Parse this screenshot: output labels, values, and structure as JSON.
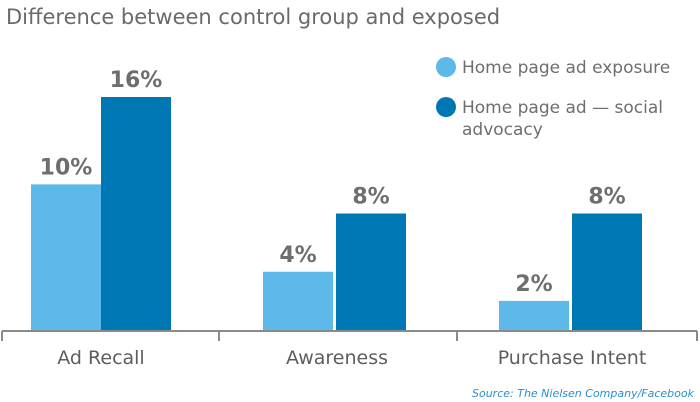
{
  "chart_data": {
    "type": "bar",
    "title": "Difference between control group and exposed",
    "categories": [
      "Ad Recall",
      "Awareness",
      "Purchase Intent"
    ],
    "series": [
      {
        "name": "Home page ad exposure",
        "values": [
          10,
          4,
          2
        ],
        "labels": [
          "10%",
          "4%",
          "2%"
        ],
        "color": "#5cb9e9"
      },
      {
        "name": "Home page ad — social advocacy",
        "name_lines": [
          "Home page ad — social",
          "advocacy"
        ],
        "values": [
          16,
          8,
          8
        ],
        "labels": [
          "16%",
          "8%",
          "8%"
        ],
        "color": "#0077b5"
      }
    ],
    "ylim": [
      0,
      16
    ],
    "grid": false,
    "legend": "top-right",
    "source": "Source: The Nielsen Company/Facebook"
  }
}
